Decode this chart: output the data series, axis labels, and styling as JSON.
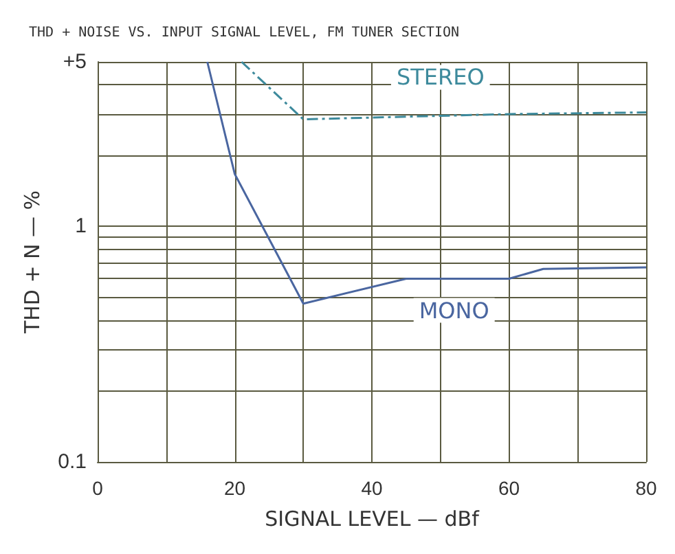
{
  "chart_data": {
    "type": "line",
    "title": "THD + NOISE VS. INPUT SIGNAL LEVEL, FM TUNER SECTION",
    "xlabel": "SIGNAL LEVEL — dBf",
    "ylabel": "THD + N — %",
    "log": "y",
    "grid": true,
    "marker": "none",
    "xlim": [
      0,
      80
    ],
    "xticks": [
      0,
      {
        "value": 10,
        "label": null
      },
      20,
      {
        "value": 30,
        "label": null
      },
      40,
      {
        "value": 50,
        "label": null
      },
      60,
      {
        "value": 70,
        "label": null
      },
      80
    ],
    "ylim": [
      0.1,
      5
    ],
    "yticks": [
      0.1,
      {
        "value": 0.2,
        "label": null
      },
      {
        "value": 0.3,
        "label": null
      },
      {
        "value": 0.4,
        "label": null
      },
      {
        "value": 0.5,
        "label": null
      },
      {
        "value": 0.6,
        "label": null
      },
      {
        "value": 0.7,
        "label": null
      },
      {
        "value": 0.8,
        "label": null
      },
      {
        "value": 0.9,
        "label": null
      },
      1,
      {
        "value": 2,
        "label": null
      },
      {
        "value": 3,
        "label": null
      },
      {
        "value": 4,
        "label": null
      },
      {
        "value": 5,
        "label": "+5"
      }
    ],
    "series": [
      {
        "name": "STEREO",
        "color": "#3d8a9c",
        "line_style": "dashed",
        "x": [
          21,
          30,
          40,
          50,
          60,
          80
        ],
        "values": [
          5,
          2.85,
          2.9,
          2.95,
          3,
          3.05
        ]
      },
      {
        "name": "MONO",
        "color": "#4a66a0",
        "line_style": "solid",
        "x": [
          16,
          20,
          30,
          45,
          60,
          65,
          80
        ],
        "values": [
          5,
          1.67,
          0.47,
          0.6,
          0.6,
          0.66,
          0.67
        ]
      }
    ]
  }
}
